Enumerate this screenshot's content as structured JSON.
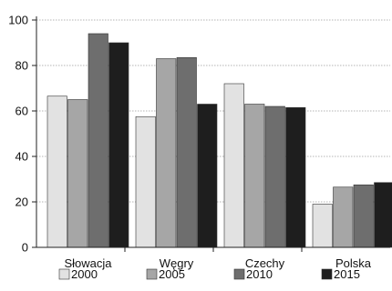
{
  "chart_data": {
    "type": "bar",
    "title": "",
    "xlabel": "",
    "ylabel": "",
    "ylim": [
      0,
      100
    ],
    "yticks": [
      "0",
      "20",
      "40",
      "60",
      "80",
      "100"
    ],
    "grid": "horizontal",
    "legend_position": "bottom",
    "categories": [
      "Słowacja",
      "Węgry",
      "Czechy",
      "Polska"
    ],
    "series": [
      {
        "name": "2000",
        "color": "#e2e2e2",
        "values": [
          66.5,
          57.5,
          72,
          19
        ]
      },
      {
        "name": "2005",
        "color": "#a6a6a6",
        "values": [
          65,
          83,
          63,
          26.5
        ]
      },
      {
        "name": "2010",
        "color": "#6e6e6e",
        "values": [
          94,
          83.5,
          62,
          27.5
        ]
      },
      {
        "name": "2015",
        "color": "#1e1e1e",
        "values": [
          90,
          63,
          61.5,
          28.5
        ]
      }
    ]
  }
}
